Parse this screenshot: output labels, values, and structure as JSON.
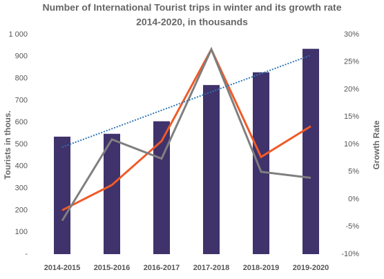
{
  "chart_data": {
    "type": "bar",
    "title": [
      "Number of International Tourist trips in winter and its growth rate",
      "2014-2020, in thousands"
    ],
    "y_label": "Tourists in thous.",
    "y2_label": "Growth Rate",
    "categories": [
      "2014-2015",
      "2015-2016",
      "2016-2017",
      "2017-2018",
      "2018-2019",
      "2019-2020"
    ],
    "series": [
      {
        "type": "bar",
        "color": "#40326a",
        "values": [
          535,
          548,
          605,
          770,
          828,
          935
        ]
      },
      {
        "type": "line",
        "axis": "y2",
        "color": "#f05a28",
        "values": [
          -2,
          2.6,
          10.6,
          27.3,
          7.7,
          13.3
        ]
      },
      {
        "type": "line",
        "axis": "y2",
        "color": "#7f7f7f",
        "values": [
          -3.9,
          10.9,
          7.4,
          27.3,
          5,
          3.9
        ]
      },
      {
        "type": "line",
        "dash": "dotted",
        "color": "#2e75b6",
        "values": [
          487,
          571,
          655,
          739,
          822,
          906
        ]
      }
    ],
    "ylim": [
      0,
      1000
    ],
    "yticks": [
      {
        "value": 0,
        "label": "-"
      },
      100,
      200,
      300,
      400,
      500,
      600,
      700,
      800,
      900,
      {
        "value": 1000,
        "label": "1 000"
      }
    ],
    "y2lim": [
      -10,
      30
    ],
    "y2ticks": [
      {
        "value": -10,
        "label": "-10%"
      },
      {
        "value": -5,
        "label": "-5%"
      },
      {
        "value": 0,
        "label": "0%"
      },
      {
        "value": 5,
        "label": "5%"
      },
      {
        "value": 10,
        "label": "10%"
      },
      {
        "value": 15,
        "label": "15%"
      },
      {
        "value": 20,
        "label": "20%"
      },
      {
        "value": 25,
        "label": "25%"
      },
      {
        "value": 30,
        "label": "30%"
      }
    ]
  }
}
